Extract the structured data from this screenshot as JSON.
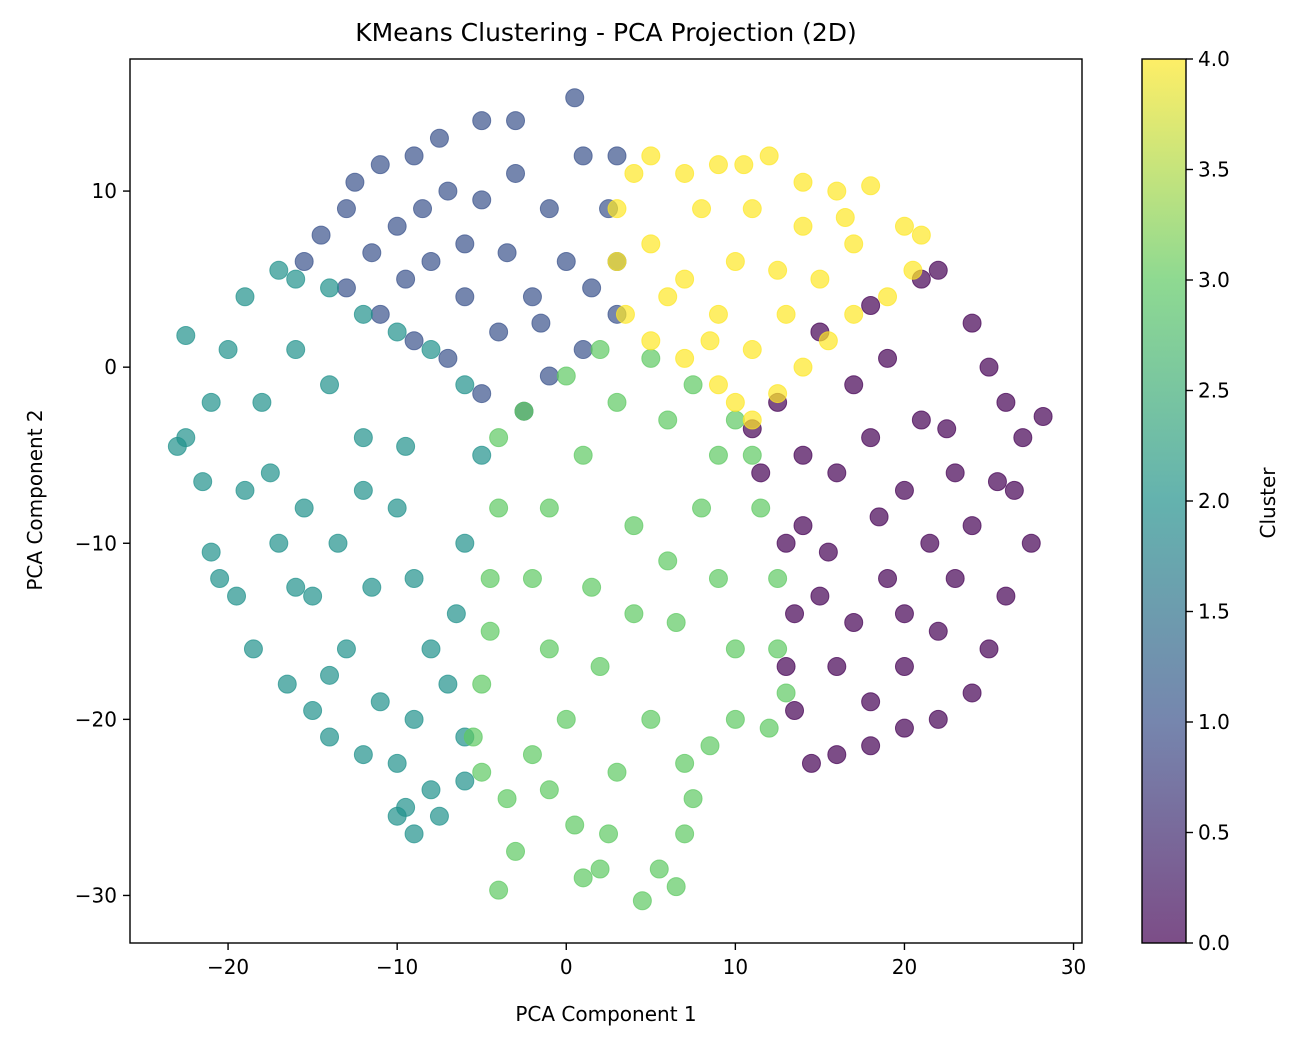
{
  "chart_data": {
    "type": "scatter",
    "title": "KMeans Clustering - PCA Projection (2D)",
    "xlabel": "PCA Component 1",
    "ylabel": "PCA Component 2",
    "xlim": [
      -25.8,
      30.5
    ],
    "ylim": [
      -32.7,
      17.5
    ],
    "x_ticks": [
      -20,
      -10,
      0,
      10,
      20,
      30
    ],
    "y_ticks": [
      -30,
      -20,
      -10,
      0,
      10
    ],
    "x_tick_labels": [
      "−20",
      "−10",
      "0",
      "10",
      "20",
      "30"
    ],
    "y_tick_labels": [
      "−30",
      "−20",
      "−10",
      "0",
      "10"
    ],
    "grid": false,
    "point_alpha": 0.7,
    "colorbar": {
      "label": "Cluster",
      "range": [
        0.0,
        4.0
      ],
      "ticks": [
        0.0,
        0.5,
        1.0,
        1.5,
        2.0,
        2.5,
        3.0,
        3.5,
        4.0
      ],
      "tick_labels": [
        "0.0",
        "0.5",
        "1.0",
        "1.5",
        "2.0",
        "2.5",
        "3.0",
        "3.5",
        "4.0"
      ],
      "colormap": "viridis",
      "colors": [
        "#440154",
        "#3b528b",
        "#21918c",
        "#5ec962",
        "#fde725"
      ]
    },
    "series": [
      {
        "cluster": 0,
        "color": "#440154",
        "points": [
          [
            12.5,
            -2.0
          ],
          [
            15.0,
            2.0
          ],
          [
            18.0,
            3.5
          ],
          [
            21.0,
            5.0
          ],
          [
            22.0,
            5.5
          ],
          [
            24.0,
            2.5
          ],
          [
            25.0,
            0.0
          ],
          [
            26.0,
            -2.0
          ],
          [
            27.0,
            -4.0
          ],
          [
            28.2,
            -2.8
          ],
          [
            26.5,
            -7.0
          ],
          [
            27.5,
            -10.0
          ],
          [
            26.0,
            -13.0
          ],
          [
            25.0,
            -16.0
          ],
          [
            24.0,
            -18.5
          ],
          [
            22.0,
            -20.0
          ],
          [
            20.0,
            -20.5
          ],
          [
            18.0,
            -21.5
          ],
          [
            16.0,
            -22.0
          ],
          [
            14.5,
            -22.5
          ],
          [
            13.5,
            -19.5
          ],
          [
            13.0,
            -17.0
          ],
          [
            13.5,
            -14.0
          ],
          [
            13.0,
            -10.0
          ],
          [
            11.5,
            -6.0
          ],
          [
            11.0,
            -3.5
          ],
          [
            14.0,
            -5.0
          ],
          [
            17.0,
            -1.0
          ],
          [
            19.0,
            0.5
          ],
          [
            21.0,
            -3.0
          ],
          [
            23.0,
            -6.0
          ],
          [
            24.0,
            -9.0
          ],
          [
            23.0,
            -12.0
          ],
          [
            22.0,
            -15.0
          ],
          [
            20.0,
            -17.0
          ],
          [
            18.0,
            -19.0
          ],
          [
            16.0,
            -17.0
          ],
          [
            15.0,
            -13.0
          ],
          [
            14.0,
            -9.0
          ],
          [
            16.0,
            -6.0
          ],
          [
            18.0,
            -4.0
          ],
          [
            20.0,
            -7.0
          ],
          [
            21.5,
            -10.0
          ],
          [
            19.0,
            -12.0
          ],
          [
            17.0,
            -14.5
          ],
          [
            18.5,
            -8.5
          ],
          [
            15.5,
            -10.5
          ],
          [
            20.0,
            -14.0
          ],
          [
            22.5,
            -3.5
          ],
          [
            25.5,
            -6.5
          ]
        ]
      },
      {
        "cluster": 1,
        "color": "#3b528b",
        "points": [
          [
            -15.5,
            6.0
          ],
          [
            -14.5,
            7.5
          ],
          [
            -13.0,
            9.0
          ],
          [
            -12.5,
            10.5
          ],
          [
            -11.0,
            11.5
          ],
          [
            -9.0,
            12.0
          ],
          [
            -7.5,
            13.0
          ],
          [
            -5.0,
            14.0
          ],
          [
            -3.0,
            14.0
          ],
          [
            0.5,
            15.3
          ],
          [
            1.0,
            12.0
          ],
          [
            3.0,
            12.0
          ],
          [
            2.5,
            9.0
          ],
          [
            3.0,
            6.0
          ],
          [
            3.0,
            3.0
          ],
          [
            1.0,
            1.0
          ],
          [
            -1.0,
            -0.5
          ],
          [
            -2.5,
            -2.5
          ],
          [
            -5.0,
            -1.5
          ],
          [
            -7.0,
            0.5
          ],
          [
            -9.0,
            1.5
          ],
          [
            -11.0,
            3.0
          ],
          [
            -13.0,
            4.5
          ],
          [
            -10.0,
            8.0
          ],
          [
            -8.0,
            6.0
          ],
          [
            -6.0,
            4.0
          ],
          [
            -4.0,
            2.0
          ],
          [
            -2.0,
            4.0
          ],
          [
            0.0,
            6.0
          ],
          [
            -1.0,
            9.0
          ],
          [
            -3.0,
            11.0
          ],
          [
            -5.0,
            9.5
          ],
          [
            -7.0,
            10.0
          ],
          [
            -9.5,
            5.0
          ],
          [
            -6.0,
            7.0
          ],
          [
            -3.5,
            6.5
          ],
          [
            -1.5,
            2.5
          ],
          [
            1.5,
            4.5
          ],
          [
            -11.5,
            6.5
          ],
          [
            -8.5,
            9.0
          ]
        ]
      },
      {
        "cluster": 2,
        "color": "#21918c",
        "points": [
          [
            -22.5,
            1.8
          ],
          [
            -23.0,
            -4.5
          ],
          [
            -22.5,
            -4.0
          ],
          [
            -21.5,
            -6.5
          ],
          [
            -21.0,
            -10.5
          ],
          [
            -20.5,
            -12.0
          ],
          [
            -19.5,
            -13.0
          ],
          [
            -18.5,
            -16.0
          ],
          [
            -16.5,
            -18.0
          ],
          [
            -15.0,
            -19.5
          ],
          [
            -14.0,
            -21.0
          ],
          [
            -12.0,
            -22.0
          ],
          [
            -10.0,
            -22.5
          ],
          [
            -9.5,
            -25.0
          ],
          [
            -10.0,
            -25.5
          ],
          [
            -9.0,
            -26.5
          ],
          [
            -7.5,
            -25.5
          ],
          [
            -8.0,
            -24.0
          ],
          [
            -6.0,
            -23.5
          ],
          [
            -6.0,
            -21.0
          ],
          [
            -7.0,
            -18.0
          ],
          [
            -6.5,
            -14.0
          ],
          [
            -6.0,
            -10.0
          ],
          [
            -5.0,
            -5.0
          ],
          [
            -6.0,
            -1.0
          ],
          [
            -8.0,
            1.0
          ],
          [
            -10.0,
            2.0
          ],
          [
            -12.0,
            3.0
          ],
          [
            -14.0,
            4.5
          ],
          [
            -16.0,
            5.0
          ],
          [
            -17.0,
            5.5
          ],
          [
            -19.0,
            4.0
          ],
          [
            -20.0,
            1.0
          ],
          [
            -21.0,
            -2.0
          ],
          [
            -19.0,
            -7.0
          ],
          [
            -17.0,
            -10.0
          ],
          [
            -15.0,
            -13.0
          ],
          [
            -13.0,
            -16.0
          ],
          [
            -11.0,
            -19.0
          ],
          [
            -9.0,
            -20.0
          ],
          [
            -8.0,
            -16.0
          ],
          [
            -9.0,
            -12.0
          ],
          [
            -10.0,
            -8.0
          ],
          [
            -12.0,
            -4.0
          ],
          [
            -14.0,
            -1.0
          ],
          [
            -16.0,
            1.0
          ],
          [
            -18.0,
            -2.0
          ],
          [
            -17.5,
            -6.0
          ],
          [
            -15.5,
            -8.0
          ],
          [
            -13.5,
            -10.0
          ],
          [
            -11.5,
            -12.5
          ],
          [
            -12.0,
            -7.0
          ],
          [
            -9.5,
            -4.5
          ],
          [
            -16.0,
            -12.5
          ],
          [
            -14.0,
            -17.5
          ]
        ]
      },
      {
        "cluster": 3,
        "color": "#5ec962",
        "points": [
          [
            -4.0,
            -29.7
          ],
          [
            -3.0,
            -27.5
          ],
          [
            -1.0,
            -24.0
          ],
          [
            1.0,
            -29.0
          ],
          [
            2.0,
            -28.5
          ],
          [
            4.5,
            -30.3
          ],
          [
            5.5,
            -28.5
          ],
          [
            6.5,
            -29.5
          ],
          [
            7.0,
            -26.5
          ],
          [
            7.5,
            -24.5
          ],
          [
            7.0,
            -22.5
          ],
          [
            8.5,
            -21.5
          ],
          [
            10.0,
            -20.0
          ],
          [
            12.0,
            -20.5
          ],
          [
            13.0,
            -18.5
          ],
          [
            12.5,
            -16.0
          ],
          [
            12.5,
            -12.0
          ],
          [
            11.5,
            -8.0
          ],
          [
            11.0,
            -5.0
          ],
          [
            10.0,
            -3.0
          ],
          [
            7.5,
            -1.0
          ],
          [
            5.0,
            0.5
          ],
          [
            2.0,
            1.0
          ],
          [
            0.0,
            -0.5
          ],
          [
            -2.5,
            -2.5
          ],
          [
            -4.0,
            -4.0
          ],
          [
            -4.0,
            -8.0
          ],
          [
            -4.5,
            -12.0
          ],
          [
            -4.5,
            -15.0
          ],
          [
            -5.0,
            -18.0
          ],
          [
            -5.5,
            -21.0
          ],
          [
            -5.0,
            -23.0
          ],
          [
            -3.5,
            -24.5
          ],
          [
            -2.0,
            -22.0
          ],
          [
            0.0,
            -20.0
          ],
          [
            2.0,
            -17.0
          ],
          [
            4.0,
            -14.0
          ],
          [
            6.0,
            -11.0
          ],
          [
            8.0,
            -8.0
          ],
          [
            9.0,
            -5.0
          ],
          [
            6.0,
            -3.0
          ],
          [
            3.0,
            -2.0
          ],
          [
            1.0,
            -5.0
          ],
          [
            -1.0,
            -8.0
          ],
          [
            -2.0,
            -12.0
          ],
          [
            -1.0,
            -16.0
          ],
          [
            1.5,
            -12.5
          ],
          [
            4.0,
            -9.0
          ],
          [
            6.5,
            -14.5
          ],
          [
            9.0,
            -12.0
          ],
          [
            10.0,
            -16.0
          ],
          [
            3.0,
            -23.0
          ],
          [
            5.0,
            -20.0
          ],
          [
            0.5,
            -26.0
          ],
          [
            2.5,
            -26.5
          ]
        ]
      },
      {
        "cluster": 4,
        "color": "#fde725",
        "points": [
          [
            4.0,
            11.0
          ],
          [
            5.0,
            12.0
          ],
          [
            7.0,
            11.0
          ],
          [
            9.0,
            11.5
          ],
          [
            10.5,
            11.5
          ],
          [
            12.0,
            12.0
          ],
          [
            14.0,
            10.5
          ],
          [
            16.0,
            10.0
          ],
          [
            18.0,
            10.3
          ],
          [
            20.0,
            8.0
          ],
          [
            21.0,
            7.5
          ],
          [
            20.5,
            5.5
          ],
          [
            19.0,
            4.0
          ],
          [
            17.0,
            3.0
          ],
          [
            15.5,
            1.5
          ],
          [
            14.0,
            0.0
          ],
          [
            12.5,
            -1.5
          ],
          [
            11.0,
            -3.0
          ],
          [
            10.0,
            -2.0
          ],
          [
            9.0,
            -1.0
          ],
          [
            7.0,
            0.5
          ],
          [
            5.0,
            1.5
          ],
          [
            3.5,
            3.0
          ],
          [
            3.0,
            6.0
          ],
          [
            3.0,
            9.0
          ],
          [
            5.0,
            7.0
          ],
          [
            7.0,
            5.0
          ],
          [
            9.0,
            3.0
          ],
          [
            11.0,
            1.0
          ],
          [
            13.0,
            3.0
          ],
          [
            15.0,
            5.0
          ],
          [
            17.0,
            7.0
          ],
          [
            14.0,
            8.0
          ],
          [
            11.0,
            9.0
          ],
          [
            8.0,
            9.0
          ],
          [
            6.0,
            4.0
          ],
          [
            10.0,
            6.0
          ],
          [
            12.5,
            5.5
          ],
          [
            16.5,
            8.5
          ],
          [
            8.5,
            1.5
          ]
        ]
      }
    ]
  }
}
